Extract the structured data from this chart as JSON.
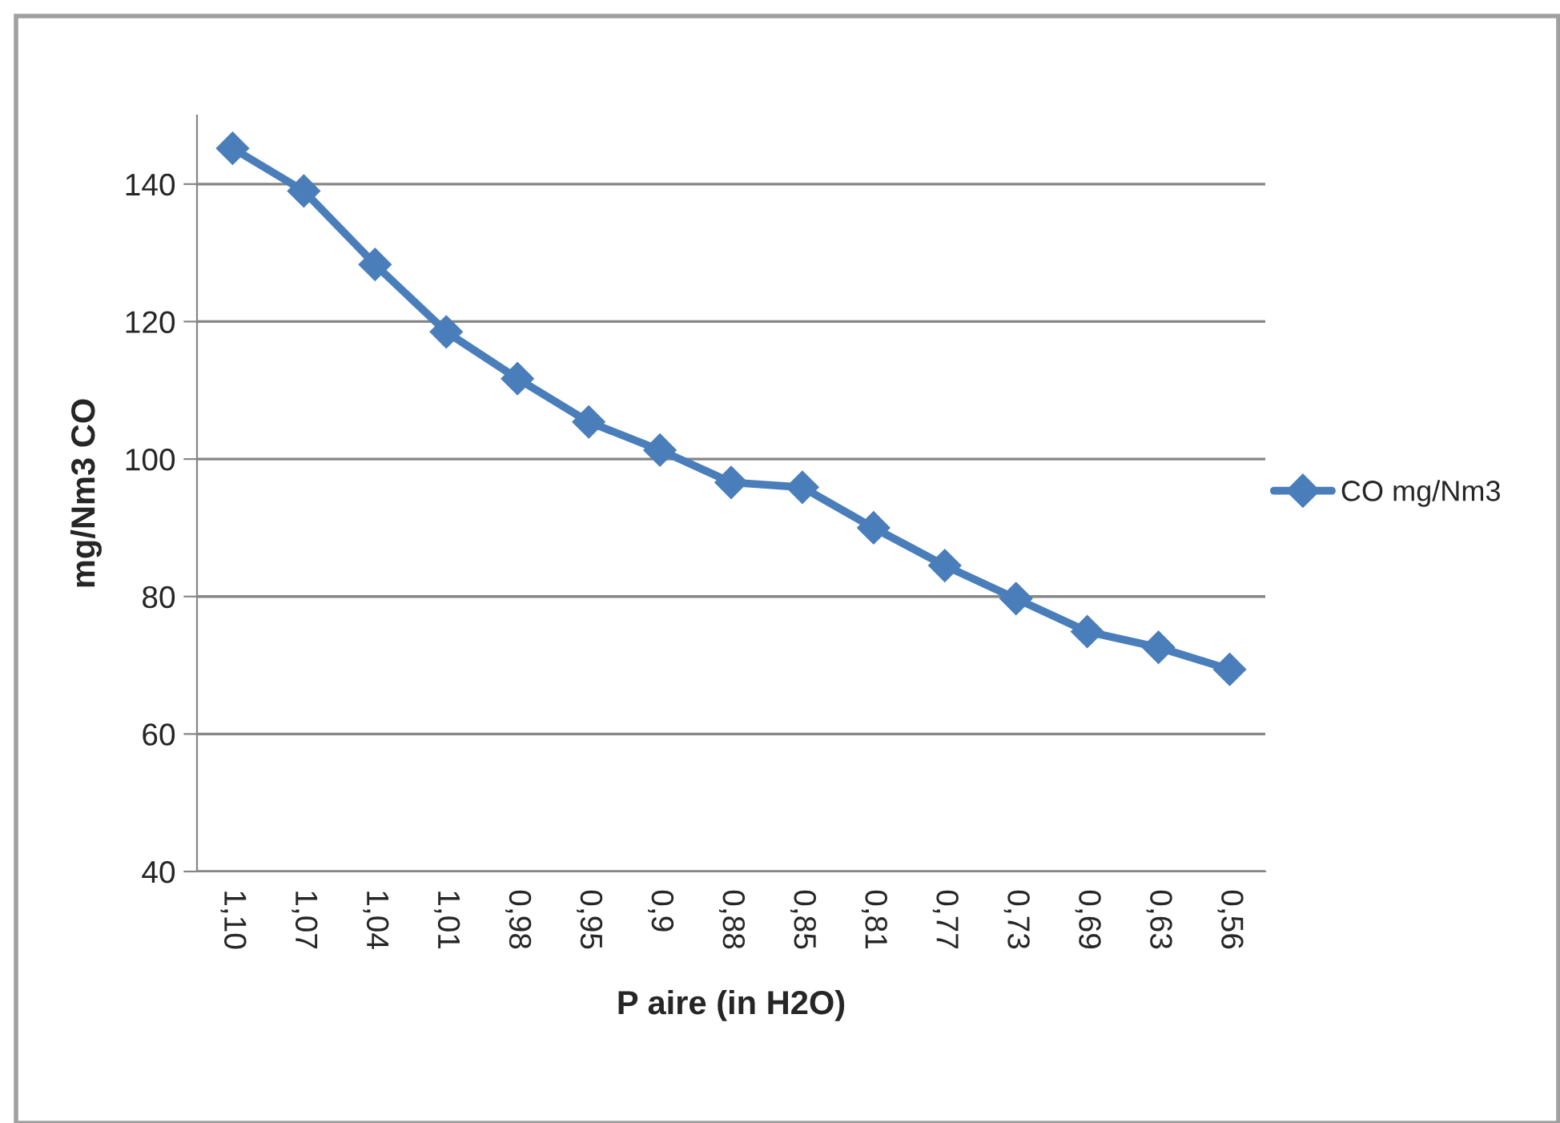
{
  "chart_data": {
    "type": "line",
    "xlabel": "P aire (in H2O)",
    "ylabel": "mg/Nm3 CO",
    "categories": [
      "1,10",
      "1,07",
      "1,04",
      "1,01",
      "0,98",
      "0,95",
      "0,9",
      "0,88",
      "0,85",
      "0,81",
      "0,77",
      "0,73",
      "0,69",
      "0,63",
      "0,56"
    ],
    "series": [
      {
        "name": "CO mg/Nm3",
        "color": "#4a7ebb",
        "values": [
          145.2,
          139,
          128.3,
          118.5,
          111.7,
          105.4,
          101.3,
          96.6,
          95.9,
          90,
          84.5,
          79.7,
          74.9,
          72.6,
          69.4
        ]
      }
    ],
    "ylim": [
      40,
      150
    ],
    "yticks": [
      40,
      60,
      80,
      100,
      120,
      140
    ],
    "grid": "y",
    "legend": "right",
    "marker": "diamond",
    "line_style": "solid"
  }
}
